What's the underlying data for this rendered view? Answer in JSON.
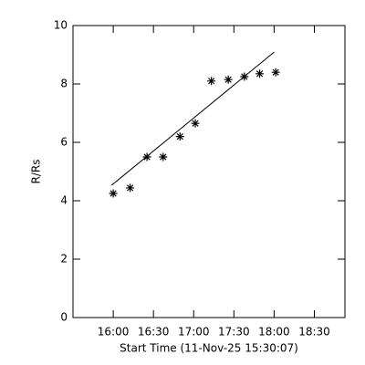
{
  "chart_data": {
    "type": "scatter",
    "xlabel": "Start Time (11-Nov-25 15:30:07)",
    "ylabel": "R/Rs",
    "xlim": [
      15.5,
      18.88
    ],
    "ylim": [
      0,
      10
    ],
    "xticks": [
      {
        "value": 16,
        "label": "16:00"
      },
      {
        "value": 16.5,
        "label": "16:30"
      },
      {
        "value": 17,
        "label": "17:00"
      },
      {
        "value": 17.5,
        "label": "17:30"
      },
      {
        "value": 18,
        "label": "18:00"
      },
      {
        "value": 18.5,
        "label": "18:30"
      }
    ],
    "yticks": [
      0,
      2,
      4,
      6,
      8,
      10
    ],
    "color": "#000000",
    "points": {
      "x": [
        16.0,
        16.21,
        16.42,
        16.62,
        16.83,
        17.02,
        17.22,
        17.43,
        17.63,
        17.82,
        18.02
      ],
      "values": [
        4.25,
        4.44,
        5.5,
        5.5,
        6.2,
        6.65,
        8.1,
        8.15,
        8.25,
        8.35,
        8.4
      ]
    },
    "fit": {
      "x": [
        15.98,
        18.0
      ],
      "values": [
        4.53,
        9.09
      ]
    }
  }
}
